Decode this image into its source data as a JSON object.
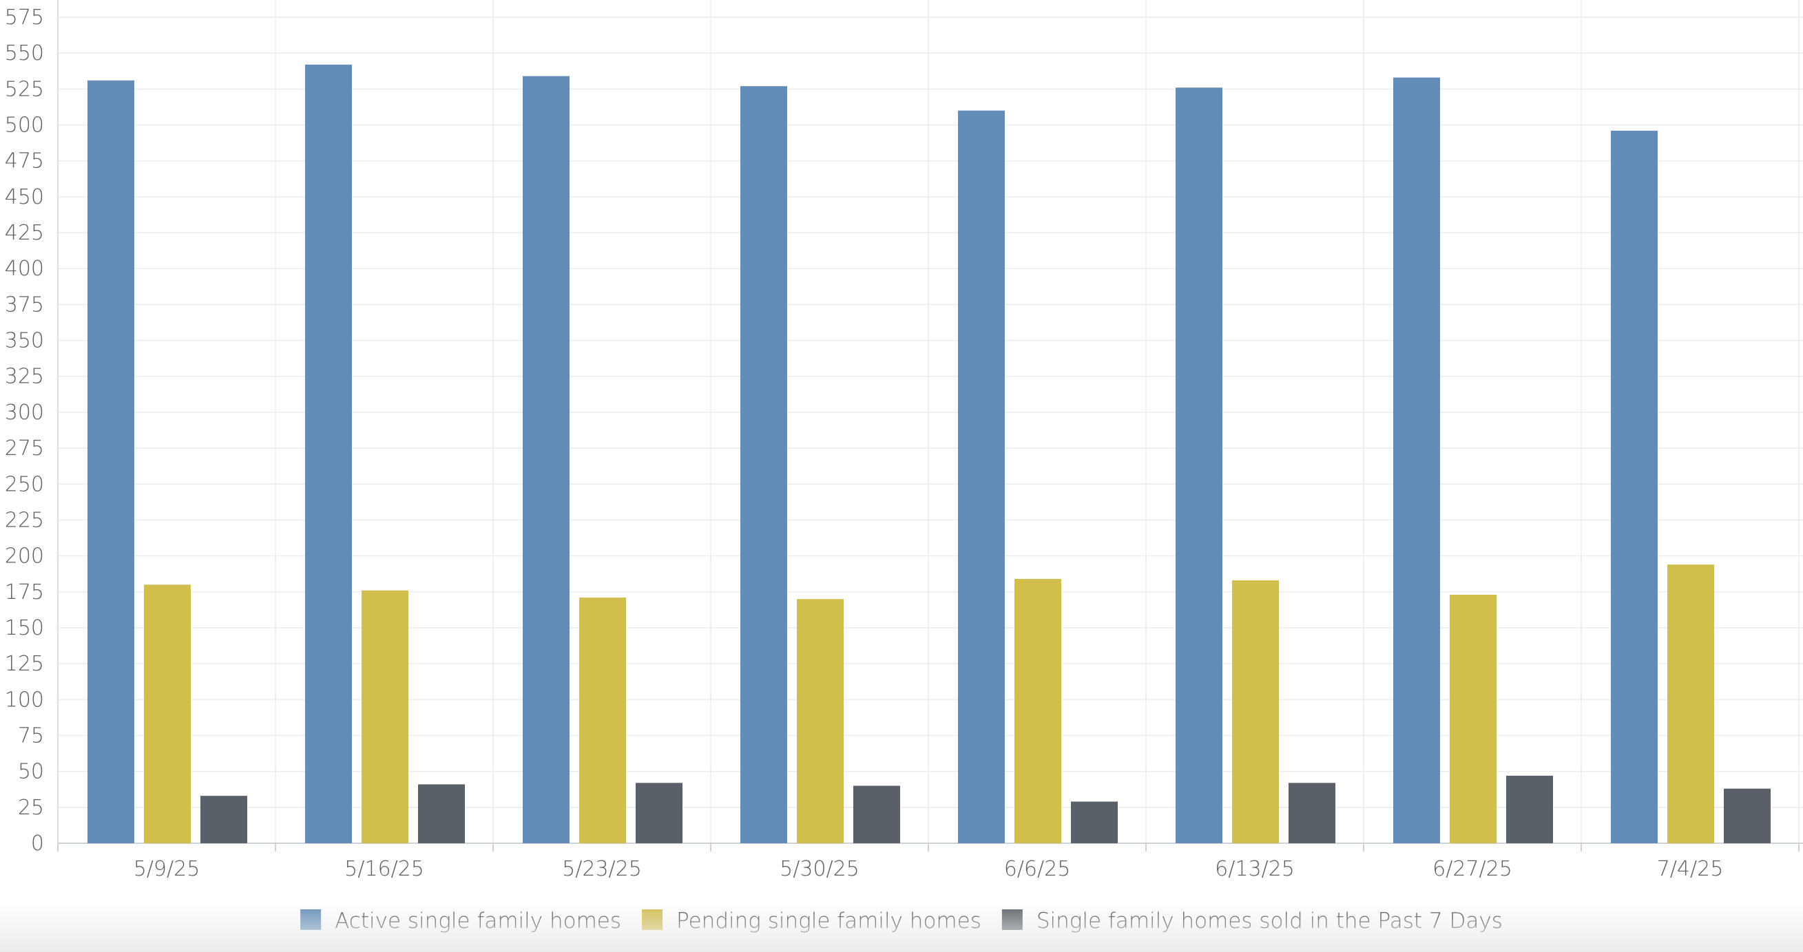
{
  "chart_data": {
    "type": "bar",
    "title": "",
    "xlabel": "",
    "ylabel": "",
    "categories": [
      "5/9/25",
      "5/16/25",
      "5/23/25",
      "5/30/25",
      "6/6/25",
      "6/13/25",
      "6/27/25",
      "7/4/25"
    ],
    "series": [
      {
        "name": "Active single family homes",
        "color": "#628cb9",
        "values": [
          531,
          542,
          534,
          527,
          510,
          526,
          533,
          496
        ]
      },
      {
        "name": "Pending single family homes",
        "color": "#d2be4c",
        "values": [
          180,
          176,
          171,
          170,
          184,
          183,
          173,
          194
        ]
      },
      {
        "name": "Single family homes sold in the Past 7 Days",
        "color": "#5a6067",
        "values": [
          33,
          41,
          42,
          40,
          29,
          42,
          47,
          38
        ]
      }
    ],
    "ylim": [
      0,
      575
    ],
    "yticks": [
      0,
      25,
      50,
      75,
      100,
      125,
      150,
      175,
      200,
      225,
      250,
      275,
      300,
      325,
      350,
      375,
      400,
      425,
      450,
      475,
      500,
      525,
      550,
      575
    ],
    "grid": true,
    "legend_position": "bottom-center"
  }
}
